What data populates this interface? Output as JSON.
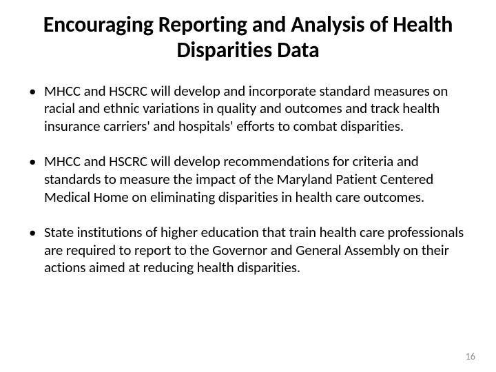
{
  "title": "Encouraging Reporting and Analysis of Health Disparities Data",
  "bullets": [
    "MHCC and HSCRC will develop and incorporate standard measures on racial and ethnic variations in quality and outcomes and track health insurance carriers' and hospitals' efforts to combat disparities.",
    "MHCC and HSCRC will develop recommendations for criteria and standards to measure the impact of the Maryland Patient Centered Medical Home on eliminating disparities in health care outcomes.",
    "State institutions of higher education that train health care professionals are required to report to the Governor and General Assembly on their actions aimed at reducing health disparities."
  ],
  "page_number": "16",
  "colors": {
    "text": "#000000",
    "background": "#ffffff",
    "page_number": "#8b8b8b"
  },
  "typography": {
    "title_fontsize": 32,
    "title_weight": 700,
    "body_fontsize": 21,
    "pagenum_fontsize": 14
  }
}
